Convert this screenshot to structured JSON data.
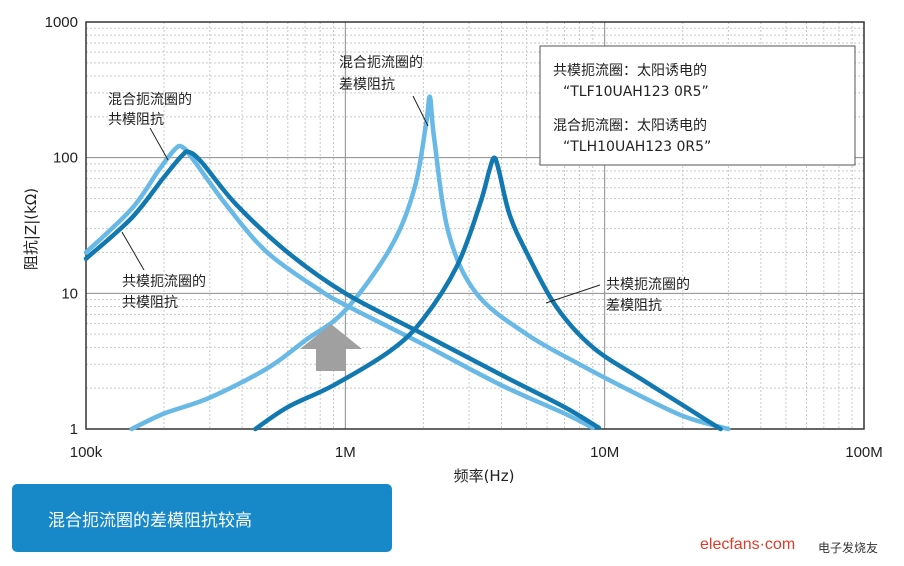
{
  "chart_data": {
    "type": "line",
    "xscale": "log",
    "yscale": "log",
    "xlim": [
      100000,
      100000000
    ],
    "ylim": [
      1,
      1000
    ],
    "xticks": [
      {
        "value": 100000,
        "label": "100k"
      },
      {
        "value": 1000000,
        "label": "1M"
      },
      {
        "value": 10000000,
        "label": "10M"
      },
      {
        "value": 100000000,
        "label": "100M"
      }
    ],
    "yticks": [
      {
        "value": 1,
        "label": "1"
      },
      {
        "value": 10,
        "label": "10"
      },
      {
        "value": 100,
        "label": "100"
      },
      {
        "value": 1000,
        "label": "1000"
      }
    ],
    "xlabel": "频率(Hz)",
    "ylabel": "阻抗|Z|(kΩ)",
    "grid": true,
    "series": [
      {
        "name": "混合扼流圈的共模阻抗",
        "color": "#68b9e6",
        "points": [
          [
            100000,
            20
          ],
          [
            150000,
            42
          ],
          [
            190000,
            80
          ],
          [
            220000,
            115
          ],
          [
            235000,
            120
          ],
          [
            260000,
            96
          ],
          [
            350000,
            44
          ],
          [
            500000,
            20
          ],
          [
            800000,
            10.5
          ],
          [
            1000000,
            8.2
          ],
          [
            2000000,
            4.2
          ],
          [
            4000000,
            2.1
          ],
          [
            7000000,
            1.3
          ],
          [
            9000000,
            1.02
          ]
        ]
      },
      {
        "name": "共模扼流圈的共模阻抗",
        "color": "#1278b0",
        "points": [
          [
            100000,
            18
          ],
          [
            150000,
            36
          ],
          [
            200000,
            72
          ],
          [
            235000,
            104
          ],
          [
            250000,
            110
          ],
          [
            280000,
            92
          ],
          [
            380000,
            45
          ],
          [
            600000,
            20
          ],
          [
            1000000,
            10
          ],
          [
            2000000,
            5
          ],
          [
            4000000,
            2.5
          ],
          [
            7000000,
            1.45
          ],
          [
            9500000,
            1.02
          ]
        ]
      },
      {
        "name": "混合扼流圈的差模阻抗",
        "color": "#68b9e6",
        "points": [
          [
            150000,
            1
          ],
          [
            200000,
            1.3
          ],
          [
            300000,
            1.7
          ],
          [
            500000,
            2.8
          ],
          [
            700000,
            4.5
          ],
          [
            1000000,
            7.5
          ],
          [
            1500000,
            22
          ],
          [
            1850000,
            60
          ],
          [
            2050000,
            180
          ],
          [
            2120000,
            280
          ],
          [
            2200000,
            140
          ],
          [
            2500000,
            28
          ],
          [
            3200000,
            10
          ],
          [
            5000000,
            5
          ],
          [
            8000000,
            3
          ],
          [
            12000000,
            2
          ],
          [
            20000000,
            1.25
          ],
          [
            30000000,
            1
          ]
        ]
      },
      {
        "name": "共模扼流圈的差模阻抗",
        "color": "#1278b0",
        "points": [
          [
            450000,
            1
          ],
          [
            600000,
            1.45
          ],
          [
            900000,
            2.1
          ],
          [
            1500000,
            3.8
          ],
          [
            2000000,
            6.5
          ],
          [
            2700000,
            16
          ],
          [
            3300000,
            45
          ],
          [
            3600000,
            82
          ],
          [
            3750000,
            100
          ],
          [
            3900000,
            82
          ],
          [
            4300000,
            38
          ],
          [
            5000000,
            20
          ],
          [
            6500000,
            8
          ],
          [
            9000000,
            4
          ],
          [
            14000000,
            2.3
          ],
          [
            20000000,
            1.5
          ],
          [
            28000000,
            1
          ]
        ]
      }
    ],
    "annotations": {
      "hybrid_cm": [
        "混合扼流圈的",
        "共模阻抗"
      ],
      "hybrid_dm": [
        "混合扼流圈的",
        "差模阻抗"
      ],
      "cm_cm": [
        "共模扼流圈的",
        "共模阻抗"
      ],
      "cm_dm": [
        "共模扼流圈的",
        "差模阻抗"
      ]
    },
    "legend": [
      "共模扼流圈：太阳诱电的",
      "“TLF10UAH123 0R5”",
      "混合扼流圈：太阳诱电的",
      "“TLH10UAH123 0R5”"
    ],
    "arrow_color": "#a0a0a0"
  },
  "banner": {
    "text": "混合扼流圈的差模阻抗较高",
    "color": "#1788c8"
  },
  "watermark": {
    "text": "elecfans·com",
    "text_cn": "电子发烧友"
  }
}
